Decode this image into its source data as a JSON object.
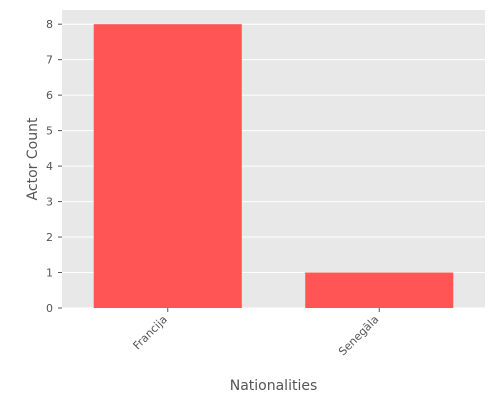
{
  "chart_data": {
    "type": "bar",
    "categories": [
      "Francija",
      "Senegāla"
    ],
    "values": [
      8,
      1
    ],
    "xlabel": "Nationalities",
    "ylabel": "Actor Count",
    "ylim": [
      0,
      8.4
    ],
    "yticks": [
      0,
      1,
      2,
      3,
      4,
      5,
      6,
      7,
      8
    ],
    "grid": true,
    "legend": "none"
  },
  "colors": {
    "bar": "#ff5555",
    "plot_background": "#e8e8e8",
    "grid": "#ffffff",
    "text": "#555555"
  }
}
